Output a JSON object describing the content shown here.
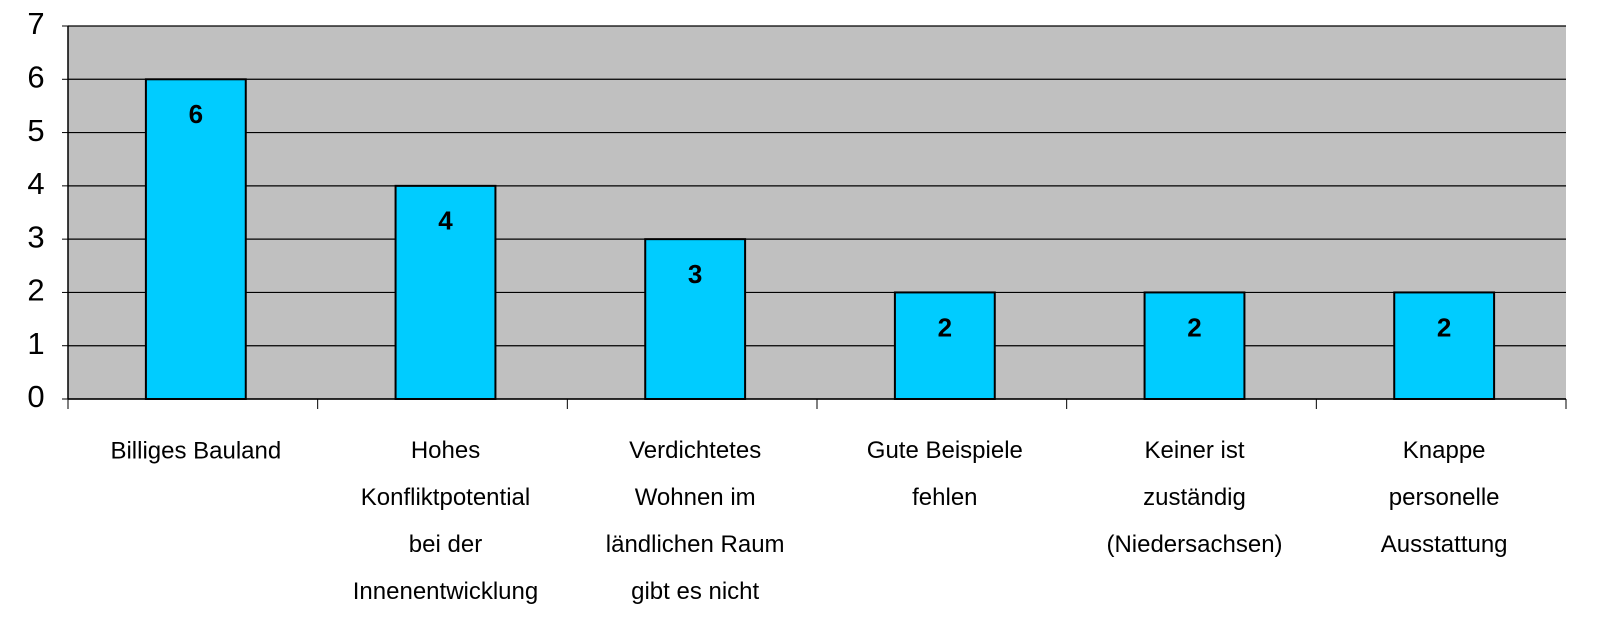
{
  "chart_data": {
    "type": "bar",
    "categories": [
      "Billiges Bauland",
      "Hohes\nKonfliktpotential\nbei der\nInnenentwicklung",
      "Verdichtetes\nWohnen im\nländlichen Raum\ngibt es nicht",
      "Gute Beispiele\nfehlen",
      "Keiner ist\nzuständig\n(Niedersachsen)",
      "Knappe\npersonelle\nAusstattung"
    ],
    "values": [
      6,
      4,
      3,
      2,
      2,
      2
    ],
    "color": "#00ccff",
    "ylim": [
      0,
      7
    ],
    "yticks": [
      0,
      1,
      2,
      3,
      4,
      5,
      6,
      7
    ],
    "grid": true
  }
}
